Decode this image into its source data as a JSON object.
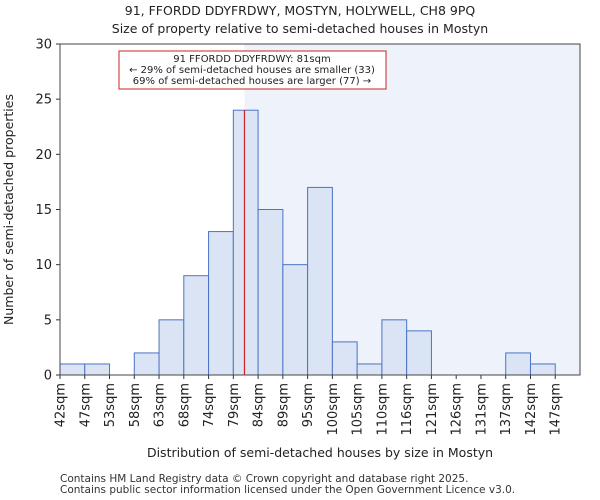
{
  "chart_data": {
    "type": "bar",
    "title": "91, FFORDD DDYFRDWY, MOSTYN, HOLYWELL, CH8 9PQ",
    "subtitle": "Size of property relative to semi-detached houses in Mostyn",
    "xlabel": "Distribution of semi-detached houses by size in Mostyn",
    "ylabel": "Number of semi-detached properties",
    "categories": [
      "42sqm",
      "47sqm",
      "53sqm",
      "58sqm",
      "63sqm",
      "68sqm",
      "74sqm",
      "79sqm",
      "84sqm",
      "89sqm",
      "95sqm",
      "100sqm",
      "105sqm",
      "110sqm",
      "116sqm",
      "121sqm",
      "126sqm",
      "131sqm",
      "137sqm",
      "142sqm",
      "147sqm"
    ],
    "values": [
      1,
      1,
      0,
      2,
      5,
      9,
      13,
      24,
      15,
      10,
      17,
      3,
      1,
      5,
      4,
      0,
      0,
      0,
      2,
      1,
      0
    ],
    "ylim": [
      0,
      30
    ],
    "yticks": [
      0,
      5,
      10,
      15,
      20,
      25,
      30
    ],
    "subject_bin_position": 7.45,
    "annotation": {
      "line1": "91 FFORDD DDYFRDWY: 81sqm",
      "line2": "← 29% of semi-detached houses are smaller (33)",
      "line3": "69% of semi-detached houses are larger (77) →"
    },
    "colors": {
      "bar_fill": "#dbe4f5",
      "bar_stroke": "#4a74c4",
      "marker_line": "#cc2222",
      "highlight_region": "#eef2fb"
    }
  },
  "footer": {
    "line1": "Contains HM Land Registry data © Crown copyright and database right 2025.",
    "line2": "Contains public sector information licensed under the Open Government Licence v3.0."
  }
}
